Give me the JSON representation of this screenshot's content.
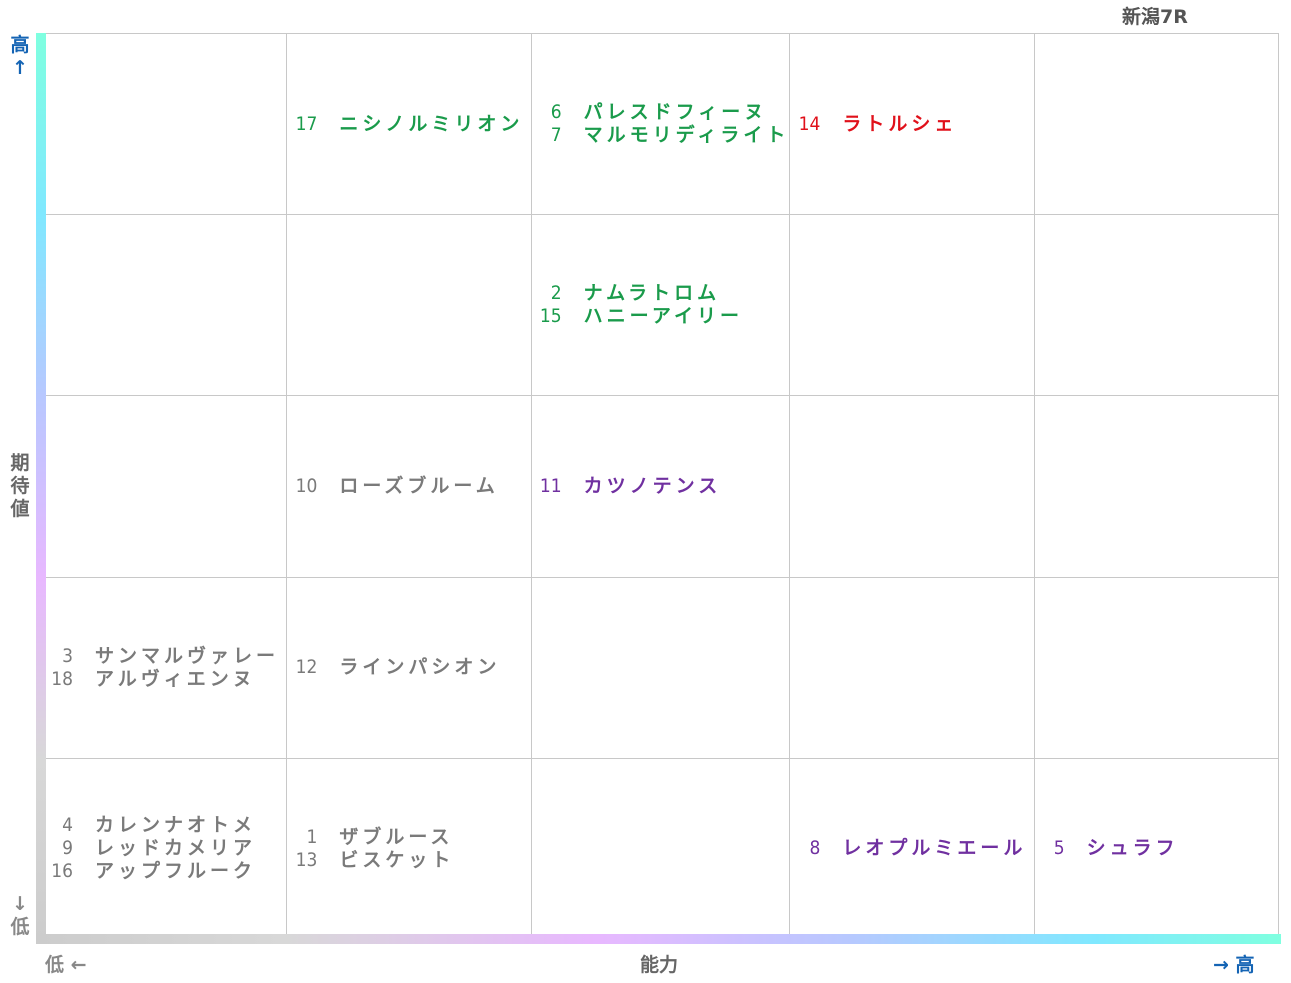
{
  "title": "新潟7R",
  "y_axis": {
    "high": "高↑",
    "label": "期待値",
    "low": "↓低"
  },
  "x_axis": {
    "low": "低 ←",
    "label": "能力",
    "high": "→ 高"
  },
  "grid": {
    "rows": [
      [
        [],
        [
          {
            "number": "17",
            "name": "ニシノルミリオン",
            "color": "#1a9b4b"
          }
        ],
        [
          {
            "number": "6",
            "name": "パレスドフィーヌ",
            "color": "#1a9b4b"
          },
          {
            "number": "7",
            "name": "マルモリディライト",
            "color": "#1a9b4b"
          }
        ],
        [
          {
            "number": "14",
            "name": "ラトルシェ",
            "color": "#e0101a"
          }
        ],
        []
      ],
      [
        [],
        [],
        [
          {
            "number": "2",
            "name": "ナムラトロム",
            "color": "#1a9b4b"
          },
          {
            "number": "15",
            "name": "ハニーアイリー",
            "color": "#1a9b4b"
          }
        ],
        [],
        []
      ],
      [
        [],
        [
          {
            "number": "10",
            "name": "ローズブルーム",
            "color": "#7a7a7a"
          }
        ],
        [
          {
            "number": "11",
            "name": "カツノテンス",
            "color": "#7030a0"
          }
        ],
        [],
        []
      ],
      [
        [
          {
            "number": "3",
            "name": "サンマルヴァレー",
            "color": "#7a7a7a"
          },
          {
            "number": "18",
            "name": "アルヴィエンヌ",
            "color": "#7a7a7a"
          }
        ],
        [
          {
            "number": "12",
            "name": "ラインパシオン",
            "color": "#7a7a7a"
          }
        ],
        [],
        [],
        []
      ],
      [
        [
          {
            "number": "4",
            "name": "カレンナオトメ",
            "color": "#7a7a7a"
          },
          {
            "number": "9",
            "name": "レッドカメリア",
            "color": "#7a7a7a"
          },
          {
            "number": "16",
            "name": "アップフルーク",
            "color": "#7a7a7a"
          }
        ],
        [
          {
            "number": "1",
            "name": "ザブルース",
            "color": "#7a7a7a"
          },
          {
            "number": "13",
            "name": "ビスケット",
            "color": "#7a7a7a"
          }
        ],
        [],
        [
          {
            "number": "8",
            "name": "レオプルミエール",
            "color": "#7030a0"
          }
        ],
        [
          {
            "number": "5",
            "name": "シュラフ",
            "color": "#7030a0"
          }
        ]
      ]
    ]
  }
}
